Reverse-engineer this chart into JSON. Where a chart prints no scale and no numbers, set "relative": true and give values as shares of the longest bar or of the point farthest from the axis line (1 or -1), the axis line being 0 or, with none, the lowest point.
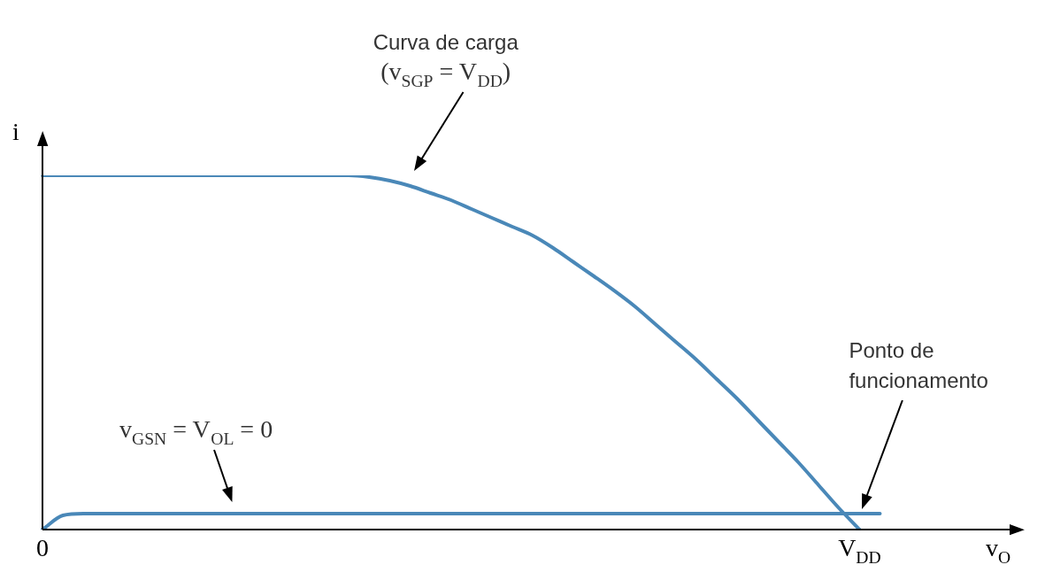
{
  "chart_data": {
    "type": "line",
    "relative": true,
    "xlabel": "v$_{O}$",
    "ylabel": "i",
    "grid": false,
    "legend": false,
    "marker": "none",
    "line_style": "solid",
    "categories": [
      "0",
      null,
      null,
      null,
      null,
      null,
      null,
      null,
      null,
      null,
      null,
      null,
      null,
      null,
      null,
      null,
      null,
      null,
      null,
      null,
      null,
      null,
      null,
      null,
      null,
      null,
      null,
      null,
      null,
      null,
      null,
      null,
      null,
      null,
      null,
      null,
      null,
      null,
      null,
      null,
      "V$_{DD}$",
      null,
      null,
      null,
      null,
      null,
      null,
      null
    ],
    "series": [
      {
        "color": "#4a88b8",
        "values": [
          1,
          1,
          1,
          1,
          1,
          1,
          1,
          1,
          1,
          1,
          1,
          1,
          1,
          1,
          1,
          1,
          0.995,
          0.985,
          0.97,
          0.95,
          0.93,
          0.905,
          0.88,
          0.855,
          0.83,
          0.795,
          0.755,
          0.715,
          0.674,
          0.63,
          0.58,
          0.53,
          0.48,
          0.425,
          0.37,
          0.31,
          0.25,
          0.19,
          0.125,
          0.06,
          0,
          null,
          null,
          null,
          null,
          null,
          null,
          null
        ]
      },
      {
        "color": "#4a88b8",
        "values": [
          0,
          0.04,
          0.045,
          0.045,
          0.045,
          0.045,
          0.045,
          0.045,
          0.045,
          0.045,
          0.045,
          0.045,
          0.045,
          0.045,
          0.045,
          0.045,
          0.045,
          0.045,
          0.045,
          0.045,
          0.045,
          0.045,
          0.045,
          0.045,
          0.045,
          0.045,
          0.045,
          0.045,
          0.045,
          0.045,
          0.045,
          0.045,
          0.045,
          0.045,
          0.045,
          0.045,
          0.045,
          0.045,
          0.045,
          0.045,
          0.045,
          0.045,
          null,
          null,
          null,
          null,
          null,
          null
        ]
      }
    ],
    "annotations": [
      "Curva de carga (v$_{SGP}$ = V$_{DD}$)",
      "v$_{GSN}$ = V$_{OL}$ = 0",
      "Ponto de funcionamento"
    ]
  }
}
